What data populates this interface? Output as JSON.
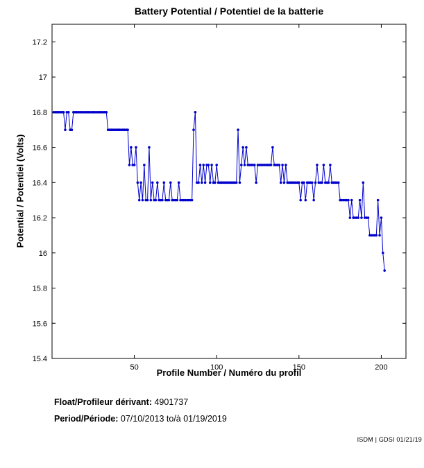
{
  "chart_data": {
    "type": "line",
    "title": "Battery Potential / Potentiel de la batterie",
    "xlabel": "Profile Number / Numéro du profil",
    "ylabel": "Potential / Potentiel (Volts)",
    "xlim": [
      0,
      215
    ],
    "ylim": [
      15.4,
      17.3
    ],
    "xticks": [
      50,
      100,
      150,
      200
    ],
    "yticks": [
      15.4,
      15.6,
      15.8,
      16,
      16.2,
      16.4,
      16.6,
      16.8,
      17,
      17.2
    ],
    "grid": false,
    "legend": "none",
    "line_color": "#0000CC",
    "marker": "dot",
    "series": [
      {
        "name": "Battery Potential (Volts)",
        "x_start": 1,
        "x_step": 1,
        "values": [
          16.8,
          16.8,
          16.8,
          16.8,
          16.8,
          16.8,
          16.8,
          16.7,
          16.8,
          16.8,
          16.7,
          16.7,
          16.8,
          16.8,
          16.8,
          16.8,
          16.8,
          16.8,
          16.8,
          16.8,
          16.8,
          16.8,
          16.8,
          16.8,
          16.8,
          16.8,
          16.8,
          16.8,
          16.8,
          16.8,
          16.8,
          16.8,
          16.8,
          16.7,
          16.7,
          16.7,
          16.7,
          16.7,
          16.7,
          16.7,
          16.7,
          16.7,
          16.7,
          16.7,
          16.7,
          16.7,
          16.5,
          16.6,
          16.5,
          16.5,
          16.6,
          16.4,
          16.3,
          16.4,
          16.3,
          16.5,
          16.3,
          16.3,
          16.6,
          16.3,
          16.4,
          16.3,
          16.3,
          16.4,
          16.3,
          16.3,
          16.3,
          16.4,
          16.3,
          16.3,
          16.3,
          16.4,
          16.3,
          16.3,
          16.3,
          16.3,
          16.4,
          16.3,
          16.3,
          16.3,
          16.3,
          16.3,
          16.3,
          16.3,
          16.3,
          16.7,
          16.8,
          16.4,
          16.4,
          16.5,
          16.4,
          16.5,
          16.4,
          16.5,
          16.5,
          16.4,
          16.5,
          16.4,
          16.4,
          16.5,
          16.4,
          16.4,
          16.4,
          16.4,
          16.4,
          16.4,
          16.4,
          16.4,
          16.4,
          16.4,
          16.4,
          16.4,
          16.7,
          16.4,
          16.5,
          16.6,
          16.5,
          16.6,
          16.5,
          16.5,
          16.5,
          16.5,
          16.5,
          16.4,
          16.5,
          16.5,
          16.5,
          16.5,
          16.5,
          16.5,
          16.5,
          16.5,
          16.5,
          16.6,
          16.5,
          16.5,
          16.5,
          16.5,
          16.4,
          16.5,
          16.4,
          16.5,
          16.4,
          16.4,
          16.4,
          16.4,
          16.4,
          16.4,
          16.4,
          16.4,
          16.3,
          16.4,
          16.4,
          16.3,
          16.4,
          16.4,
          16.4,
          16.4,
          16.3,
          16.4,
          16.5,
          16.4,
          16.4,
          16.4,
          16.5,
          16.4,
          16.4,
          16.4,
          16.5,
          16.4,
          16.4,
          16.4,
          16.4,
          16.4,
          16.3,
          16.3,
          16.3,
          16.3,
          16.3,
          16.3,
          16.2,
          16.3,
          16.2,
          16.2,
          16.2,
          16.2,
          16.3,
          16.2,
          16.4,
          16.2,
          16.2,
          16.2,
          16.1,
          16.1,
          16.1,
          16.1,
          16.1,
          16.3,
          16.1,
          16.2,
          16.0,
          15.9
        ]
      }
    ]
  },
  "footer": {
    "float_label": "Float/Profileur dérivant:",
    "float_value": "4901737",
    "period_label": "Period/Période:",
    "period_value": "07/10/2013 to/à  01/19/2019",
    "credit": "ISDM | GDSI 01/21/19"
  }
}
